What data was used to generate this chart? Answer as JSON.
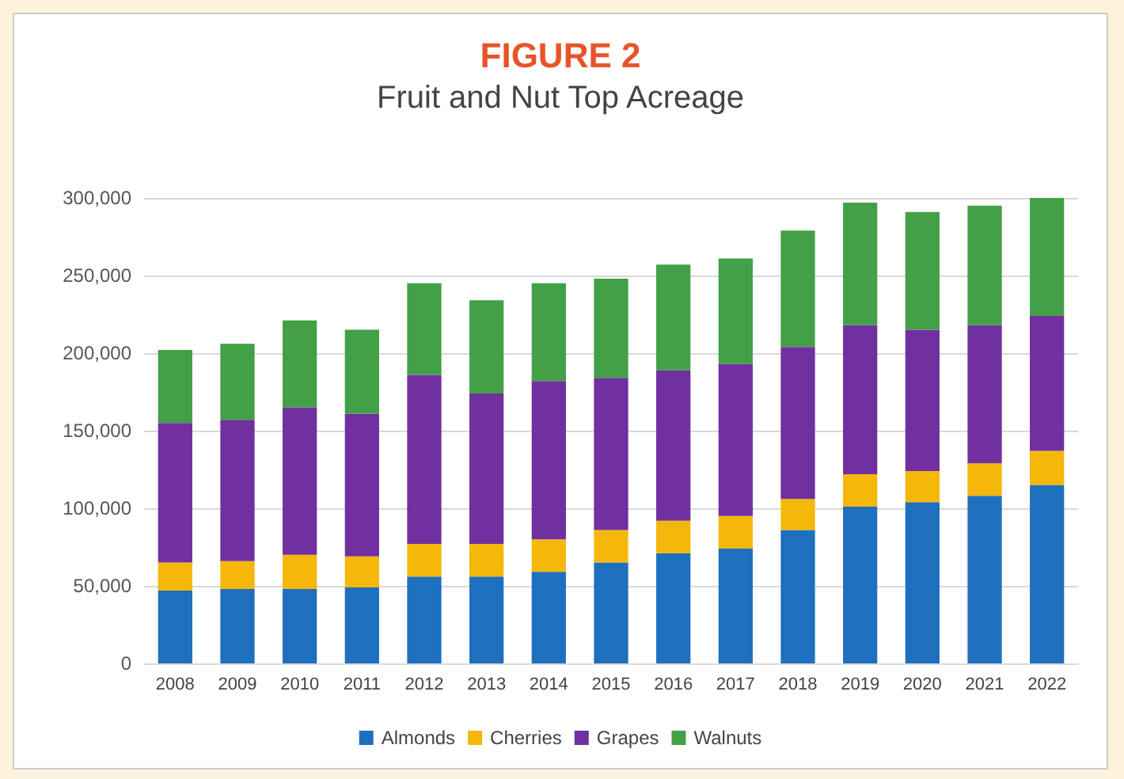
{
  "chart_data": {
    "type": "bar",
    "title": "FIGURE 2",
    "subtitle": "Fruit and Nut Top Acreage",
    "categories": [
      "2008",
      "2009",
      "2010",
      "2011",
      "2012",
      "2013",
      "2014",
      "2015",
      "2016",
      "2017",
      "2018",
      "2019",
      "2020",
      "2021",
      "2022"
    ],
    "series": [
      {
        "name": "Almonds",
        "color": "#1f6fbf",
        "values": [
          47000,
          48000,
          48000,
          49000,
          56000,
          56000,
          59000,
          65000,
          71000,
          74000,
          86000,
          101000,
          104000,
          108000,
          115000
        ]
      },
      {
        "name": "Cherries",
        "color": "#f5b70a",
        "values": [
          18000,
          18000,
          22000,
          20000,
          21000,
          21000,
          21000,
          21000,
          21000,
          21000,
          20000,
          21000,
          20000,
          21000,
          22000
        ]
      },
      {
        "name": "Grapes",
        "color": "#7030a0",
        "values": [
          90000,
          91000,
          95000,
          92000,
          109000,
          97000,
          102000,
          98000,
          97000,
          98000,
          98000,
          96000,
          91000,
          89000,
          87000
        ]
      },
      {
        "name": "Walnuts",
        "color": "#43a047",
        "values": [
          47000,
          49000,
          56000,
          54000,
          59000,
          60000,
          63000,
          64000,
          68000,
          68000,
          75000,
          79000,
          76000,
          77000,
          76000
        ]
      }
    ],
    "stacked": true,
    "ylim": [
      0,
      300000
    ],
    "yticks": [
      0,
      {
        "value": 50000,
        "label": "50,000"
      },
      {
        "value": 100000,
        "label": "100,000"
      },
      {
        "value": 150000,
        "label": "150,000"
      },
      {
        "value": 200000,
        "label": "200,000"
      },
      {
        "value": 250000,
        "label": "250,000"
      },
      {
        "value": 300000,
        "label": "300,000"
      }
    ],
    "grid": "y",
    "legend": "bottom"
  }
}
